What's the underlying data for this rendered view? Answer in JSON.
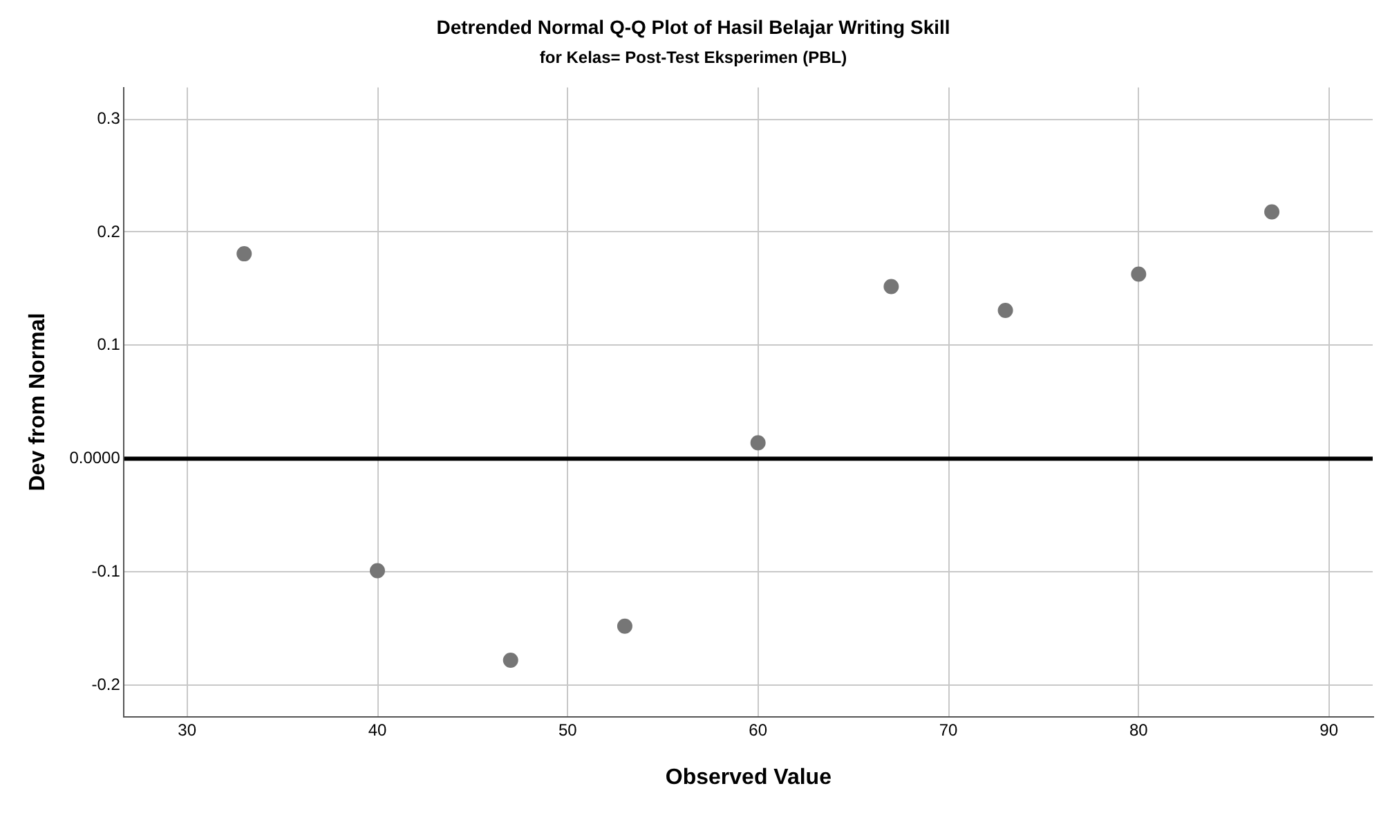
{
  "chart_data": {
    "type": "scatter",
    "title": "Detrended Normal Q-Q Plot of Hasil Belajar Writing Skill",
    "subtitle": "for Kelas= Post-Test Eksperimen (PBL)",
    "xlabel": "Observed Value",
    "ylabel": "Dev from Normal",
    "x": [
      33,
      40,
      47,
      53,
      60,
      67,
      73,
      80,
      87
    ],
    "series": [
      {
        "color": "#767676",
        "values": [
          0.181,
          -0.099,
          -0.178,
          -0.148,
          0.014,
          0.152,
          0.131,
          0.163,
          0.218
        ]
      }
    ],
    "xlim": [
      26.7,
      92.3
    ],
    "xticks": [
      30,
      40,
      50,
      60,
      70,
      80,
      90
    ],
    "ylim": [
      -0.228,
      0.328
    ],
    "yticks": [
      -0.2,
      -0.1,
      {
        "value": 0,
        "label": "0.0000"
      },
      0.1,
      0.2,
      0.3
    ],
    "ref_lines": [
      {
        "axis": "y",
        "value": 0,
        "color": "#000000"
      }
    ],
    "grid": true,
    "legend": false,
    "marker": "circle"
  }
}
